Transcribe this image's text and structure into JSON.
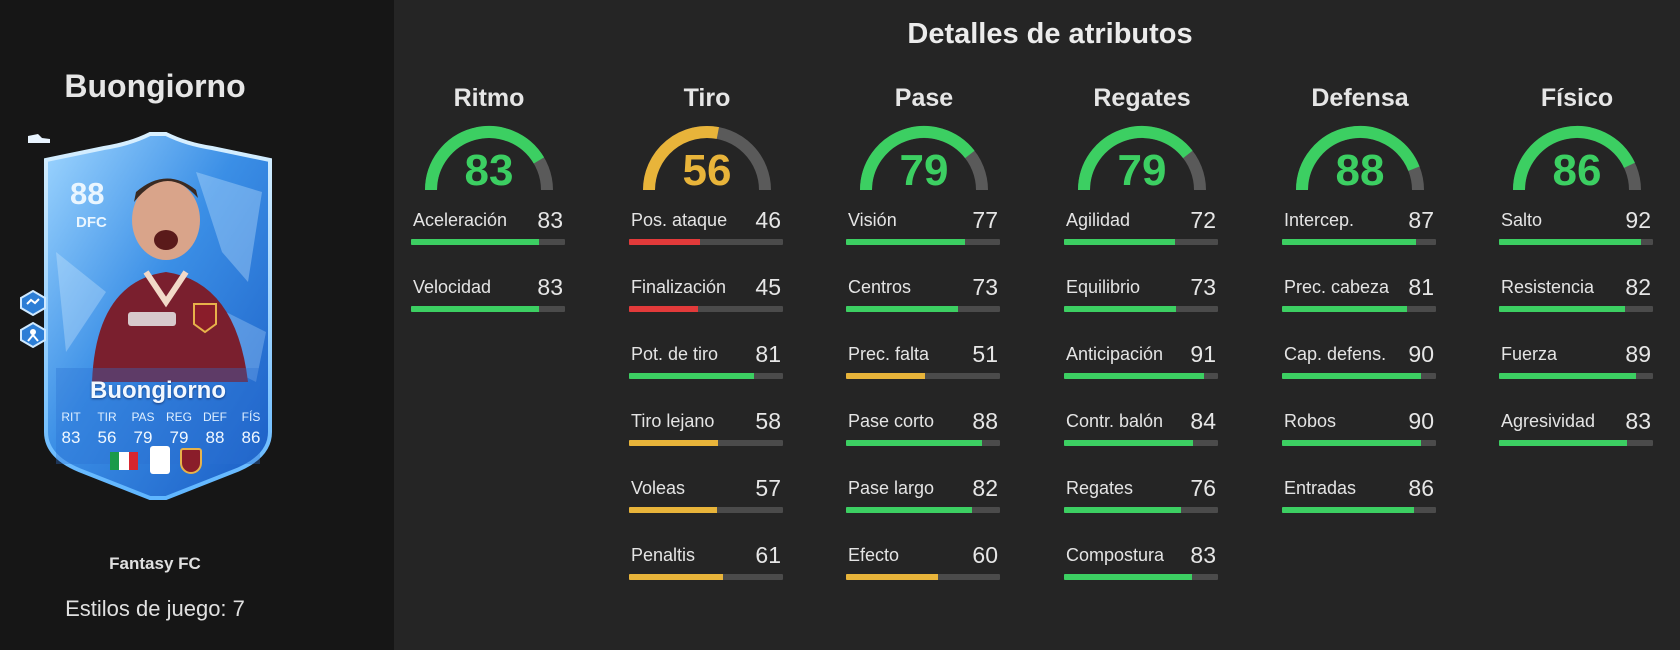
{
  "header": {
    "title": "Detalles de atributos"
  },
  "player": {
    "name": "Buongiorno",
    "rating": "88",
    "position": "DFC",
    "card_name": "Buongiorno",
    "card_type": "Fantasy FC",
    "playstyles_text": "Estilos de juego: 7",
    "card_stats": [
      {
        "label": "RIT",
        "value": "83"
      },
      {
        "label": "TIR",
        "value": "56"
      },
      {
        "label": "PAS",
        "value": "79"
      },
      {
        "label": "REG",
        "value": "79"
      },
      {
        "label": "DEF",
        "value": "88"
      },
      {
        "label": "FÍS",
        "value": "86"
      }
    ]
  },
  "colors": {
    "green": "#3ccf62",
    "yellow": "#e8b43a",
    "red": "#e23a3a",
    "track": "#4b4b4b"
  },
  "categories": [
    {
      "name": "Ritmo",
      "value": "83",
      "attrs": [
        {
          "label": "Aceleración",
          "value": "83"
        },
        {
          "label": "Velocidad",
          "value": "83"
        }
      ]
    },
    {
      "name": "Tiro",
      "value": "56",
      "attrs": [
        {
          "label": "Pos. ataque",
          "value": "46"
        },
        {
          "label": "Finalización",
          "value": "45"
        },
        {
          "label": "Pot. de tiro",
          "value": "81"
        },
        {
          "label": "Tiro lejano",
          "value": "58"
        },
        {
          "label": "Voleas",
          "value": "57"
        },
        {
          "label": "Penaltis",
          "value": "61"
        }
      ]
    },
    {
      "name": "Pase",
      "value": "79",
      "attrs": [
        {
          "label": "Visión",
          "value": "77"
        },
        {
          "label": "Centros",
          "value": "73"
        },
        {
          "label": "Prec. falta",
          "value": "51"
        },
        {
          "label": "Pase corto",
          "value": "88"
        },
        {
          "label": "Pase largo",
          "value": "82"
        },
        {
          "label": "Efecto",
          "value": "60"
        }
      ]
    },
    {
      "name": "Regates",
      "value": "79",
      "attrs": [
        {
          "label": "Agilidad",
          "value": "72"
        },
        {
          "label": "Equilibrio",
          "value": "73"
        },
        {
          "label": "Anticipación",
          "value": "91"
        },
        {
          "label": "Contr. balón",
          "value": "84"
        },
        {
          "label": "Regates",
          "value": "76"
        },
        {
          "label": "Compostura",
          "value": "83"
        }
      ]
    },
    {
      "name": "Defensa",
      "value": "88",
      "attrs": [
        {
          "label": "Intercep.",
          "value": "87"
        },
        {
          "label": "Prec. cabeza",
          "value": "81"
        },
        {
          "label": "Cap. defens.",
          "value": "90"
        },
        {
          "label": "Robos",
          "value": "90"
        },
        {
          "label": "Entradas",
          "value": "86"
        }
      ]
    },
    {
      "name": "Físico",
      "value": "86",
      "attrs": [
        {
          "label": "Salto",
          "value": "92"
        },
        {
          "label": "Resistencia",
          "value": "82"
        },
        {
          "label": "Fuerza",
          "value": "89"
        },
        {
          "label": "Agresividad",
          "value": "83"
        }
      ]
    }
  ]
}
